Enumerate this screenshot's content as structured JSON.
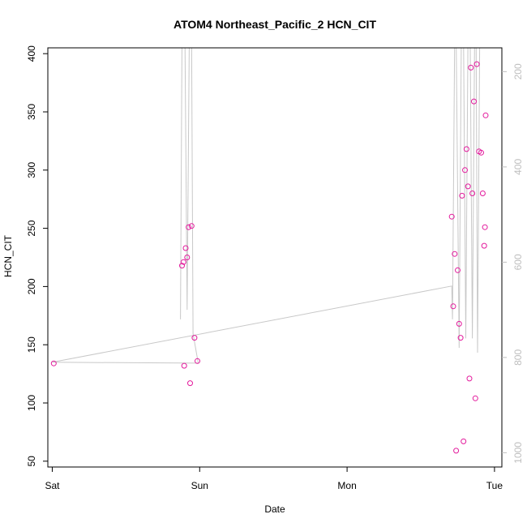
{
  "chart_data": {
    "type": "scatter",
    "title": "ATOM4 Northeast_Pacific_2 HCN_CIT",
    "xlabel": "Date",
    "ylabel": "HCN_CIT",
    "x_ticks": [
      {
        "value": 0,
        "label": "Sat"
      },
      {
        "value": 1,
        "label": "Sun"
      },
      {
        "value": 2,
        "label": "Mon"
      },
      {
        "value": 3,
        "label": "Tue"
      }
    ],
    "xlim": [
      -0.03,
      3.05
    ],
    "ylim": [
      45,
      405
    ],
    "y_ticks": [
      50,
      100,
      150,
      200,
      250,
      300,
      350,
      400
    ],
    "secondary_axis": {
      "position": "right",
      "ylim": [
        1030,
        150
      ],
      "ticks": [
        200,
        400,
        600,
        800,
        1000
      ],
      "color": "#bebebe"
    },
    "series": [
      {
        "color": "#e31a9c",
        "marker": "open-circle",
        "points": [
          {
            "x": 0.01,
            "y": 134
          },
          {
            "x": 0.88,
            "y": 218
          },
          {
            "x": 0.89,
            "y": 221
          },
          {
            "x": 0.895,
            "y": 132
          },
          {
            "x": 0.905,
            "y": 233
          },
          {
            "x": 0.915,
            "y": 225
          },
          {
            "x": 0.925,
            "y": 251
          },
          {
            "x": 0.935,
            "y": 117
          },
          {
            "x": 0.945,
            "y": 252
          },
          {
            "x": 0.965,
            "y": 156
          },
          {
            "x": 0.985,
            "y": 136
          },
          {
            "x": 2.71,
            "y": 260
          },
          {
            "x": 2.72,
            "y": 183
          },
          {
            "x": 2.73,
            "y": 228
          },
          {
            "x": 2.74,
            "y": 59
          },
          {
            "x": 2.75,
            "y": 214
          },
          {
            "x": 2.76,
            "y": 168
          },
          {
            "x": 2.77,
            "y": 156
          },
          {
            "x": 2.78,
            "y": 278
          },
          {
            "x": 2.79,
            "y": 67
          },
          {
            "x": 2.8,
            "y": 300
          },
          {
            "x": 2.81,
            "y": 318
          },
          {
            "x": 2.82,
            "y": 286
          },
          {
            "x": 2.83,
            "y": 121
          },
          {
            "x": 2.84,
            "y": 388
          },
          {
            "x": 2.85,
            "y": 280
          },
          {
            "x": 2.86,
            "y": 359
          },
          {
            "x": 2.87,
            "y": 104
          },
          {
            "x": 2.88,
            "y": 391
          },
          {
            "x": 2.895,
            "y": 316
          },
          {
            "x": 2.91,
            "y": 315
          },
          {
            "x": 2.92,
            "y": 280
          },
          {
            "x": 2.93,
            "y": 235
          },
          {
            "x": 2.935,
            "y": 251
          },
          {
            "x": 2.94,
            "y": 347
          }
        ]
      },
      {
        "color": "#c8c8c8",
        "marker": "line",
        "axis": "secondary",
        "points": [
          {
            "x": 0.0,
            "y": 810
          },
          {
            "x": 0.99,
            "y": 812
          },
          {
            "x": 0.0,
            "y": 810
          },
          {
            "x": 2.71,
            "y": 650
          },
          {
            "x": 2.715,
            "y": 720
          },
          {
            "x": 2.73,
            "y": 125
          },
          {
            "x": 2.74,
            "y": 125
          },
          {
            "x": 2.76,
            "y": 780
          },
          {
            "x": 2.775,
            "y": 125
          },
          {
            "x": 2.79,
            "y": 125
          },
          {
            "x": 2.805,
            "y": 760
          },
          {
            "x": 2.82,
            "y": 125
          },
          {
            "x": 2.835,
            "y": 125
          },
          {
            "x": 2.85,
            "y": 760
          },
          {
            "x": 2.865,
            "y": 125
          },
          {
            "x": 2.875,
            "y": 125
          },
          {
            "x": 2.885,
            "y": 790
          },
          {
            "x": 2.9,
            "y": 125
          },
          {
            "x": 2.915,
            "y": 125
          },
          {
            "x": 2.93,
            "y": 125
          }
        ]
      },
      {
        "color": "#c8c8c8",
        "marker": "line",
        "axis": "secondary",
        "points": [
          {
            "x": 0.87,
            "y": 720
          },
          {
            "x": 0.88,
            "y": 125
          },
          {
            "x": 0.9,
            "y": 125
          },
          {
            "x": 0.915,
            "y": 700
          },
          {
            "x": 0.93,
            "y": 125
          },
          {
            "x": 0.945,
            "y": 125
          },
          {
            "x": 0.955,
            "y": 750
          },
          {
            "x": 0.99,
            "y": 812
          }
        ]
      }
    ]
  }
}
